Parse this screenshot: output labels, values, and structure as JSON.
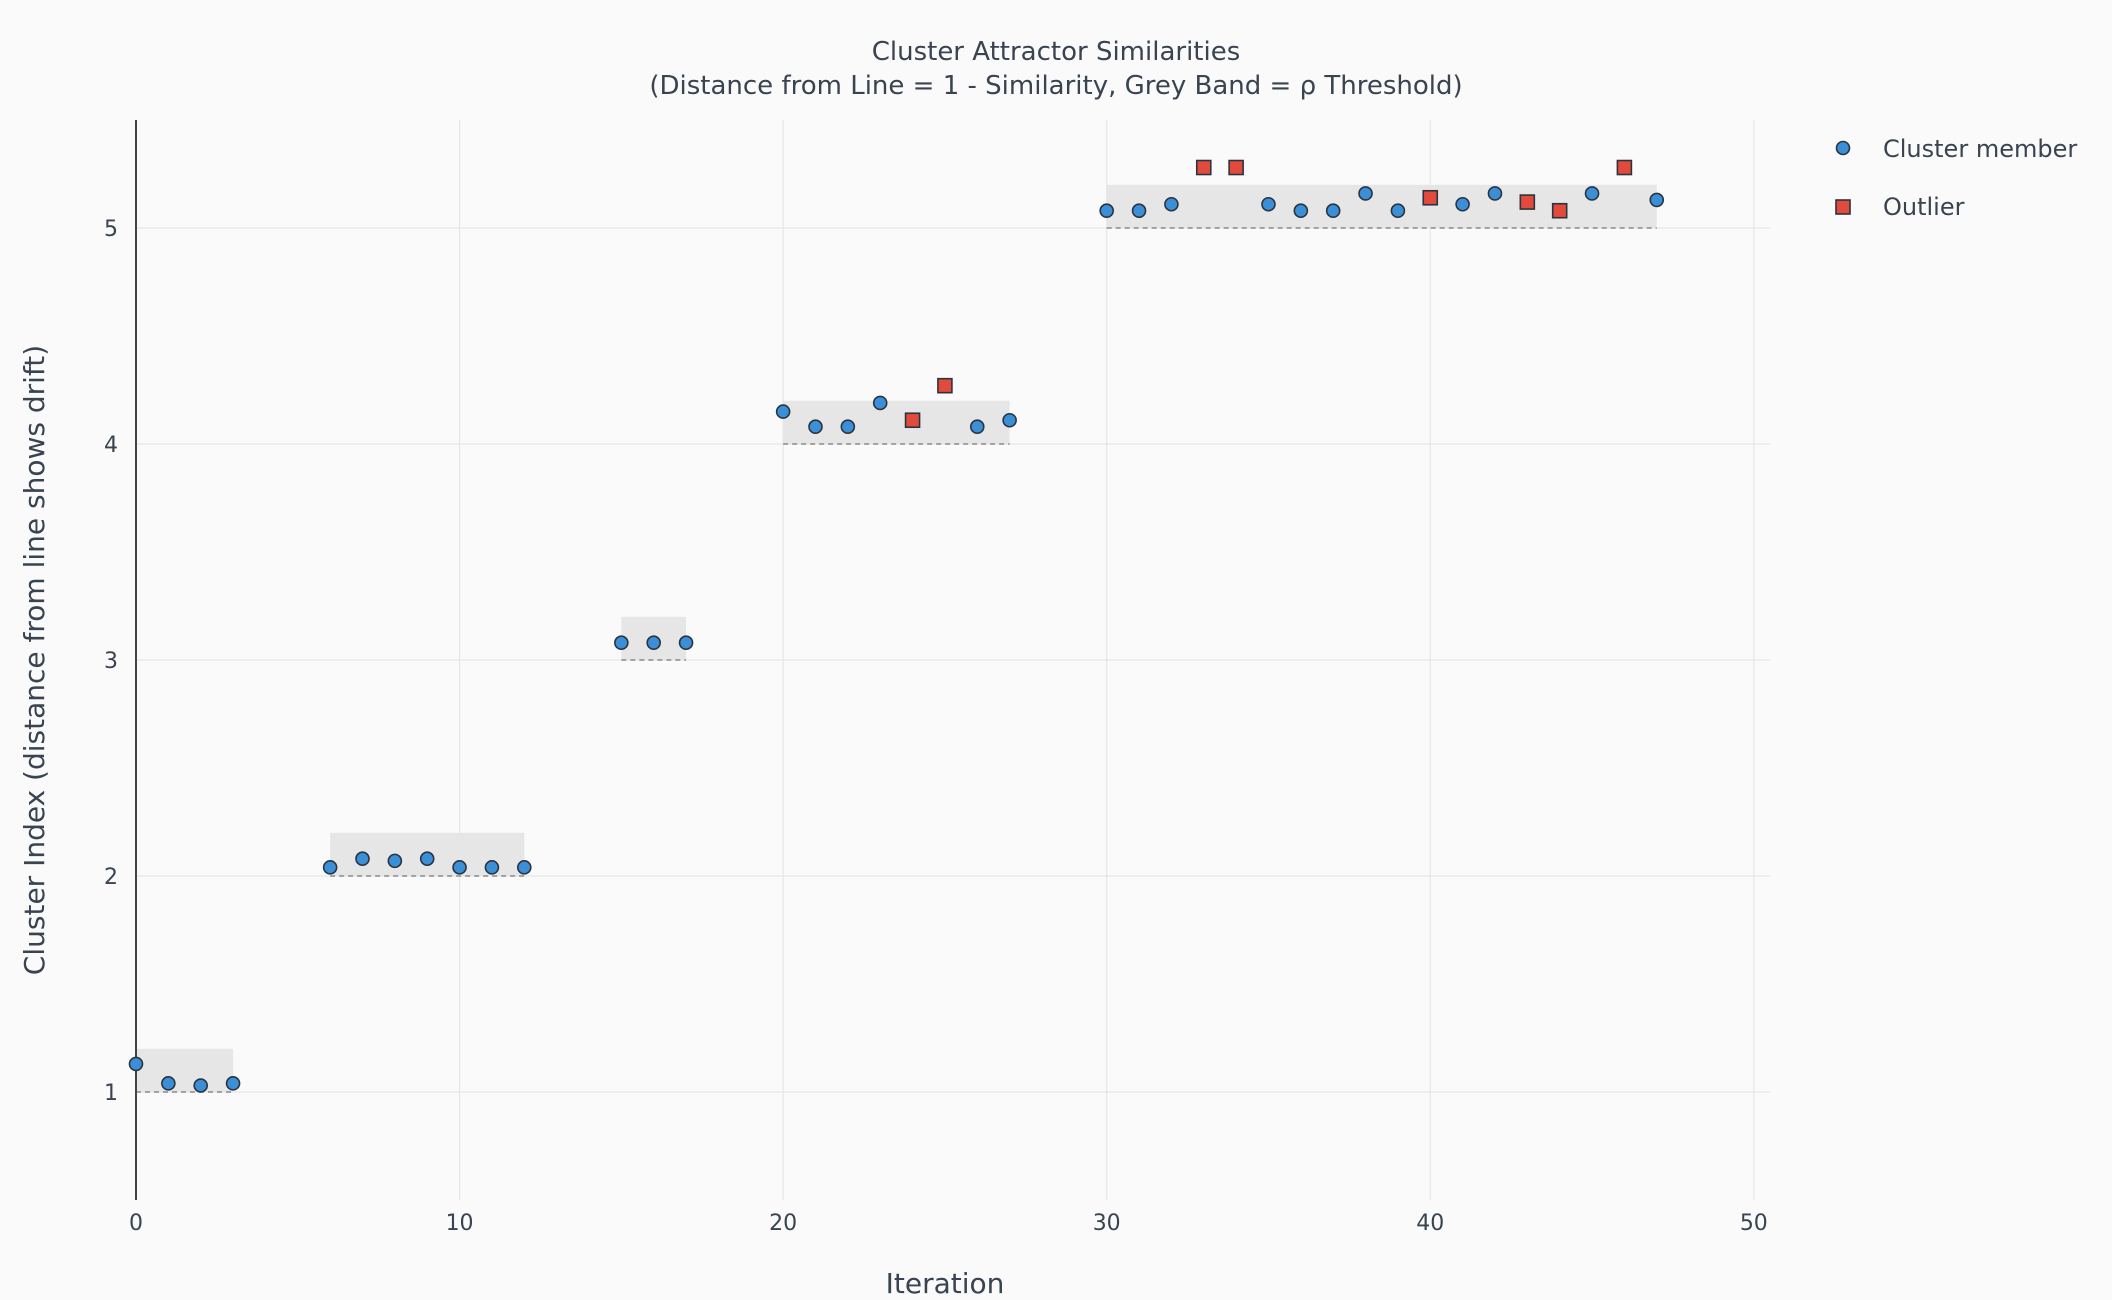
{
  "chart_data": {
    "type": "scatter",
    "title": "Cluster Attractor Similarities",
    "subtitle": "(Distance from Line = 1 - Similarity, Grey Band = ρ Threshold)",
    "xlabel": "Iteration",
    "ylabel": "Cluster Index (distance from line shows drift)",
    "xlim": [
      0,
      50.5
    ],
    "ylim": [
      0.5,
      5.5
    ],
    "xticks": [
      0,
      10,
      20,
      30,
      40,
      50
    ],
    "yticks": [
      1,
      2,
      3,
      4,
      5
    ],
    "grid": true,
    "legend_position": "top-right",
    "threshold_rho": 0.2,
    "bands": [
      {
        "cluster": 1,
        "x_start": 0,
        "x_end": 3
      },
      {
        "cluster": 2,
        "x_start": 6,
        "x_end": 12
      },
      {
        "cluster": 3,
        "x_start": 15,
        "x_end": 17
      },
      {
        "cluster": 4,
        "x_start": 20,
        "x_end": 27
      },
      {
        "cluster": 5,
        "x_start": 30,
        "x_end": 47
      }
    ],
    "series": [
      {
        "name": "Cluster member",
        "marker": "circle",
        "color": "#3a8fd6",
        "points": [
          {
            "x": 0,
            "y": 1.13
          },
          {
            "x": 1,
            "y": 1.04
          },
          {
            "x": 2,
            "y": 1.03
          },
          {
            "x": 3,
            "y": 1.04
          },
          {
            "x": 6,
            "y": 2.04
          },
          {
            "x": 7,
            "y": 2.08
          },
          {
            "x": 8,
            "y": 2.07
          },
          {
            "x": 9,
            "y": 2.08
          },
          {
            "x": 10,
            "y": 2.04
          },
          {
            "x": 11,
            "y": 2.04
          },
          {
            "x": 12,
            "y": 2.04
          },
          {
            "x": 15,
            "y": 3.08
          },
          {
            "x": 16,
            "y": 3.08
          },
          {
            "x": 17,
            "y": 3.08
          },
          {
            "x": 20,
            "y": 4.15
          },
          {
            "x": 21,
            "y": 4.08
          },
          {
            "x": 22,
            "y": 4.08
          },
          {
            "x": 23,
            "y": 4.19
          },
          {
            "x": 26,
            "y": 4.08
          },
          {
            "x": 27,
            "y": 4.11
          },
          {
            "x": 30,
            "y": 5.08
          },
          {
            "x": 31,
            "y": 5.08
          },
          {
            "x": 32,
            "y": 5.11
          },
          {
            "x": 35,
            "y": 5.11
          },
          {
            "x": 36,
            "y": 5.08
          },
          {
            "x": 37,
            "y": 5.08
          },
          {
            "x": 38,
            "y": 5.16
          },
          {
            "x": 39,
            "y": 5.08
          },
          {
            "x": 41,
            "y": 5.11
          },
          {
            "x": 42,
            "y": 5.16
          },
          {
            "x": 45,
            "y": 5.16
          },
          {
            "x": 47,
            "y": 5.13
          }
        ]
      },
      {
        "name": "Outlier",
        "marker": "square",
        "color": "#e24b3b",
        "points": [
          {
            "x": 24,
            "y": 4.11
          },
          {
            "x": 25,
            "y": 4.27
          },
          {
            "x": 33,
            "y": 5.28
          },
          {
            "x": 34,
            "y": 5.28
          },
          {
            "x": 40,
            "y": 5.14
          },
          {
            "x": 43,
            "y": 5.12
          },
          {
            "x": 44,
            "y": 5.08
          },
          {
            "x": 46,
            "y": 5.28
          }
        ]
      }
    ]
  }
}
